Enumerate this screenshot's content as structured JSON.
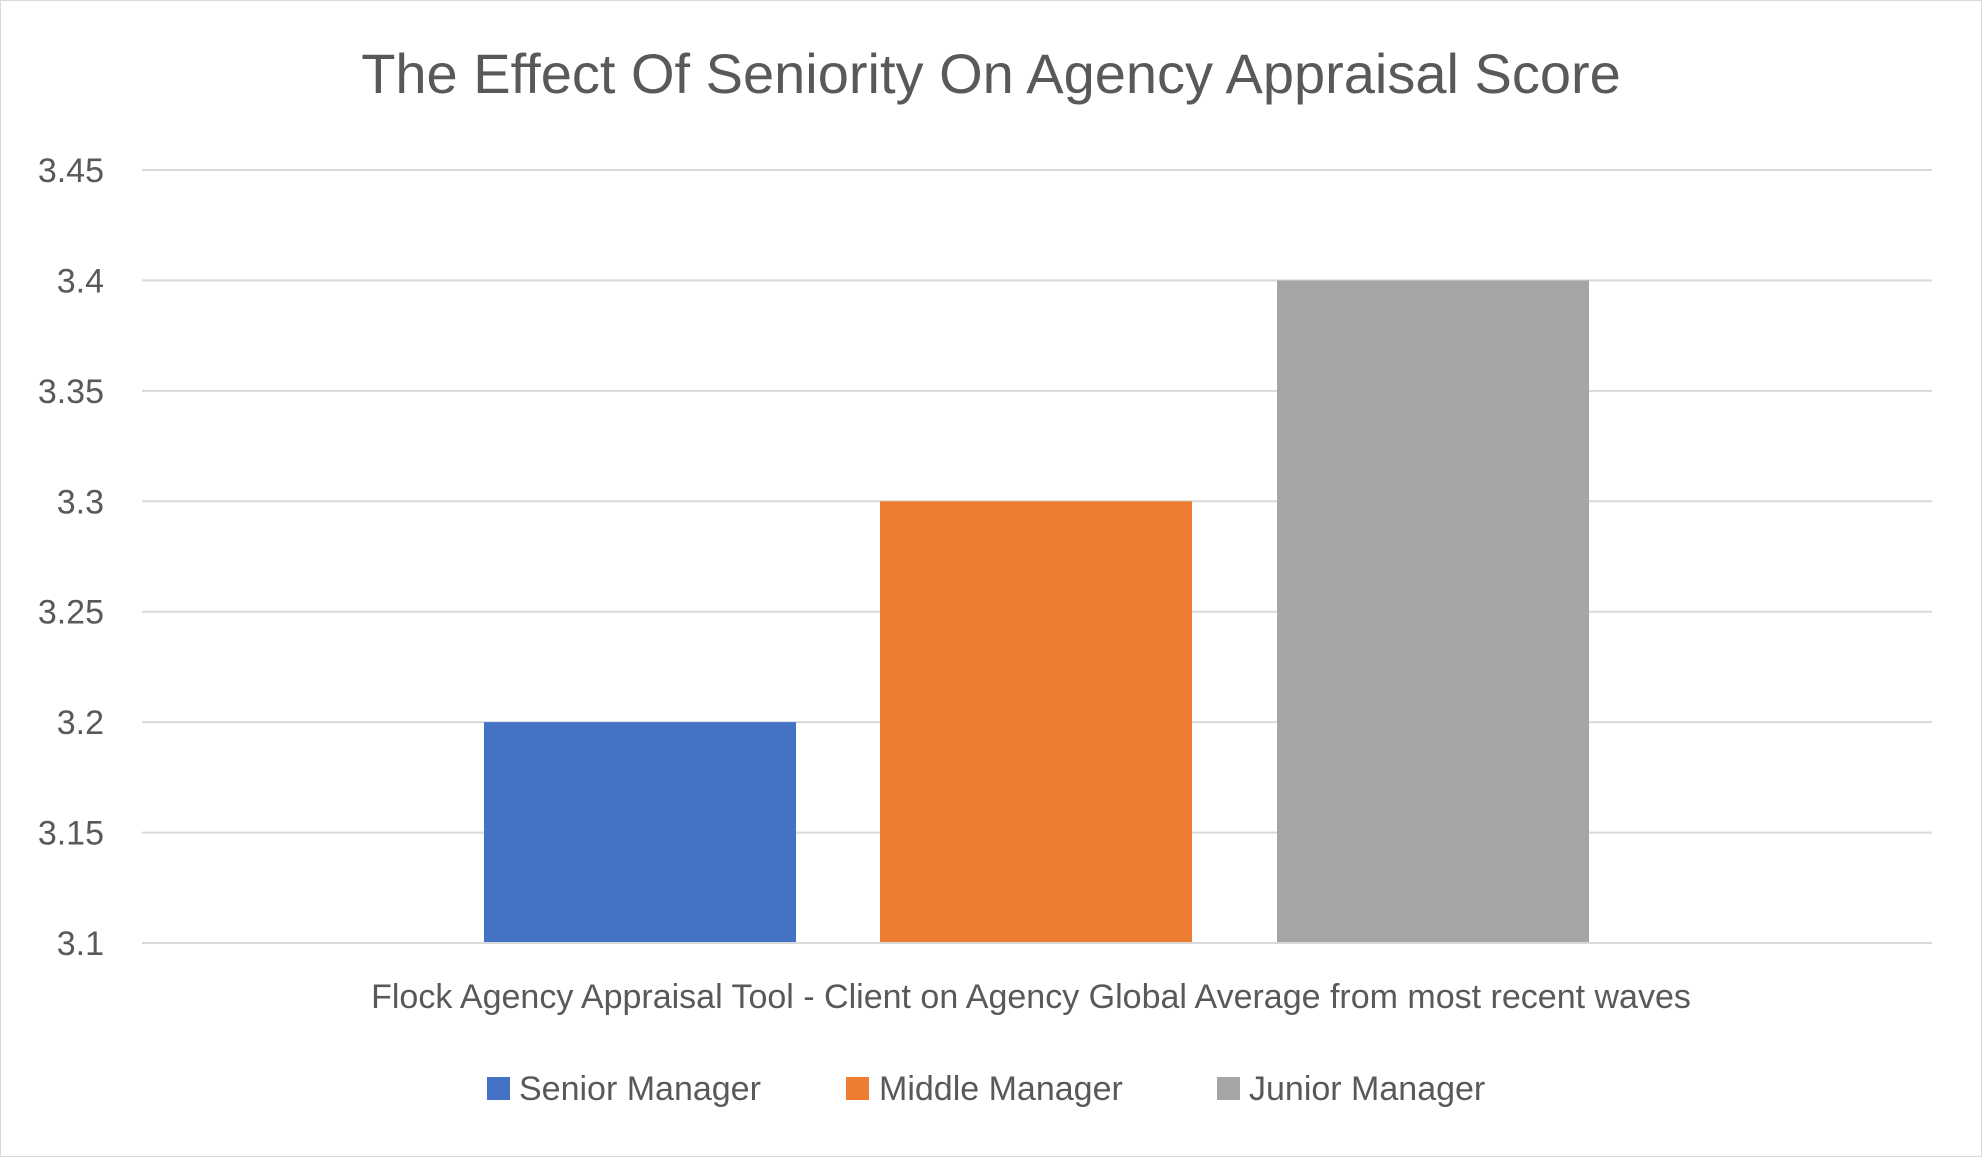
{
  "chart_data": {
    "type": "bar",
    "title": "The Effect Of Seniority On Agency Appraisal Score",
    "xlabel": "Flock Agency Appraisal Tool - Client on Agency Global Average from most recent waves",
    "ylabel": "",
    "categories": [
      "Flock Agency Appraisal Tool - Client on Agency Global Average from most recent waves"
    ],
    "series": [
      {
        "name": "Senior Manager",
        "values": [
          3.2
        ],
        "color": "#4472C4"
      },
      {
        "name": "Middle Manager",
        "values": [
          3.3
        ],
        "color": "#ED7D31"
      },
      {
        "name": "Junior Manager",
        "values": [
          3.4
        ],
        "color": "#A5A5A5"
      }
    ],
    "ylim": [
      3.1,
      3.45
    ],
    "yticks": [
      "3.1",
      "3.15",
      "3.2",
      "3.25",
      "3.3",
      "3.35",
      "3.4",
      "3.45"
    ],
    "grid": true,
    "legend_position": "bottom"
  },
  "colors": {
    "gridline": "#d9d9d9",
    "text": "#595959",
    "border": "#d9d9d9"
  }
}
